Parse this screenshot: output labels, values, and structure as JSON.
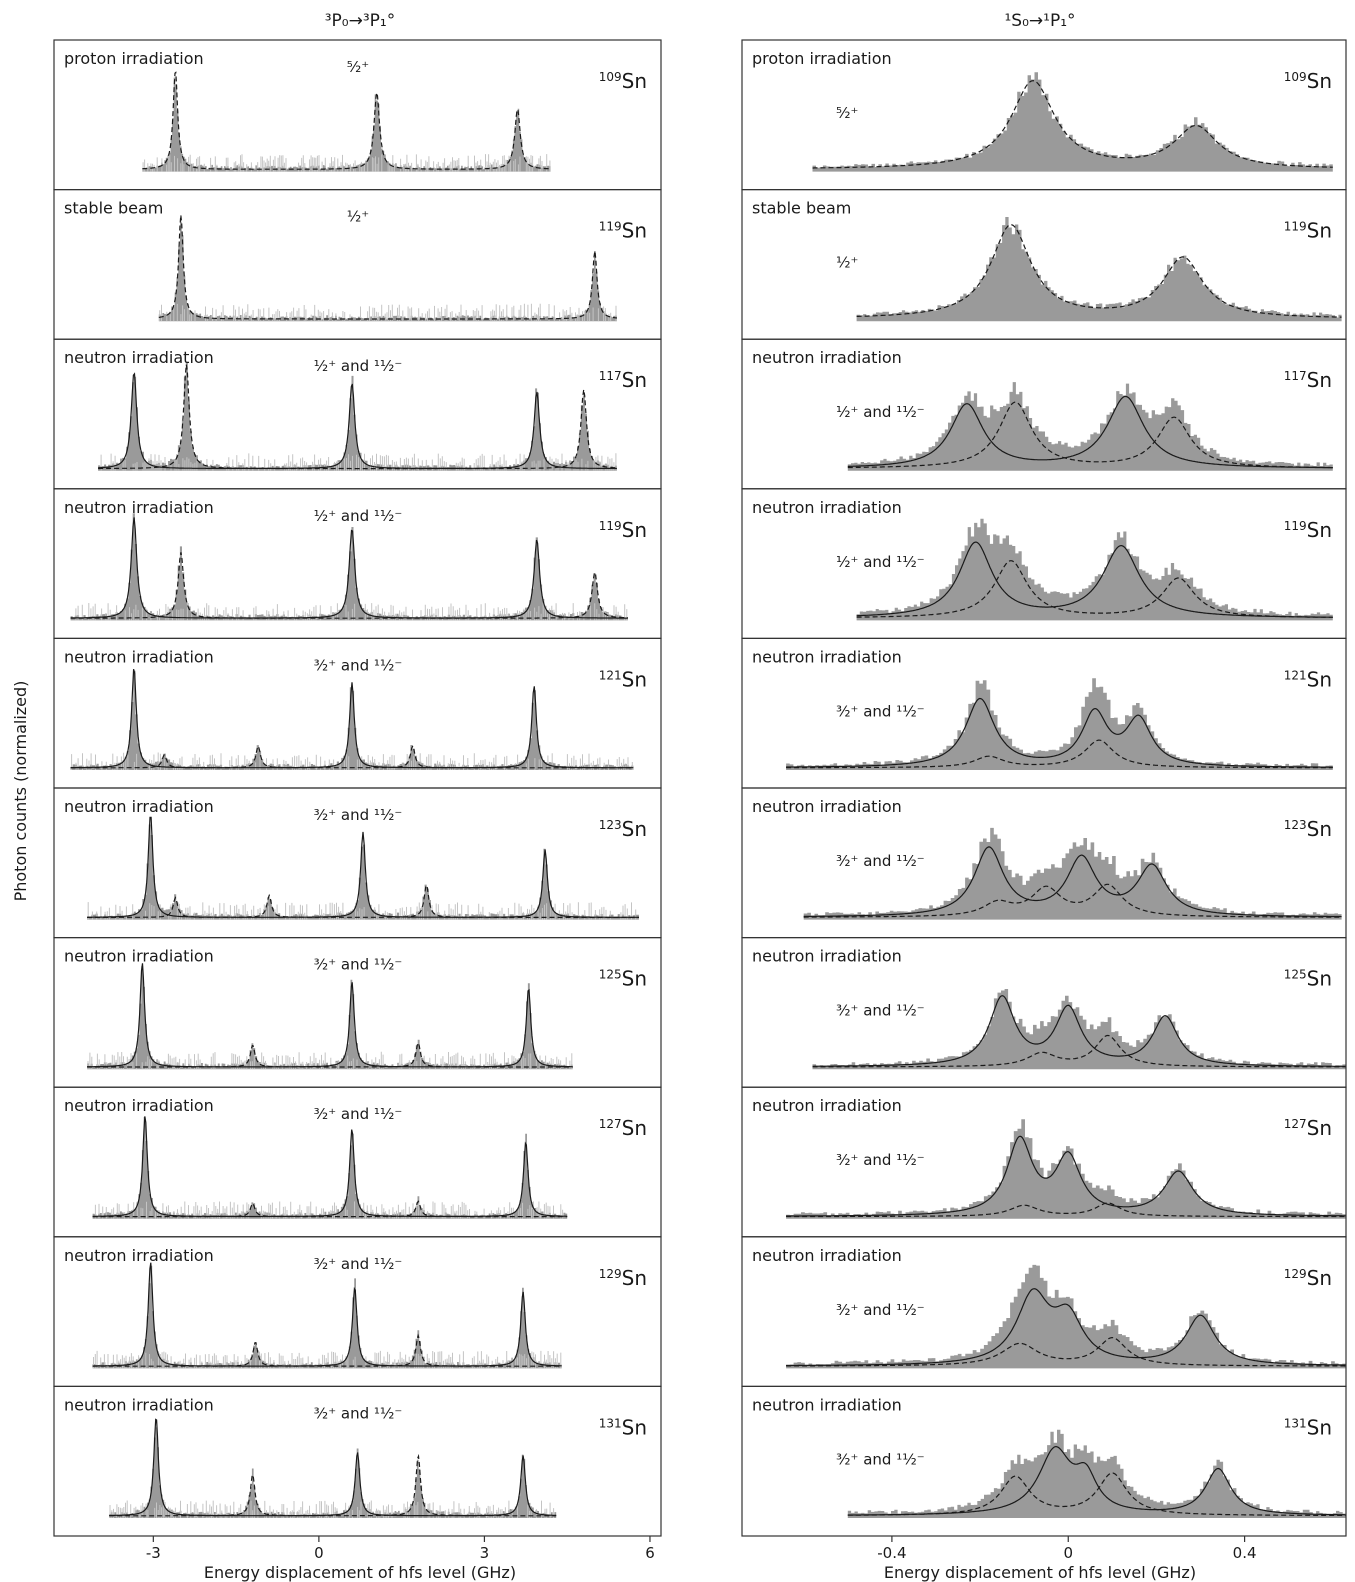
{
  "chart_data": [
    {
      "type": "area",
      "title": "³P₀→³P₁°",
      "xlabel": "Energy displacement of hfs level (GHz)",
      "ylabel": "Photon counts (normalized)",
      "xlim": [
        -4.8,
        6.2
      ],
      "x_ticks": [
        -3,
        0,
        3,
        6
      ],
      "x_tick_labels": [
        "-3",
        "0",
        "3",
        "6"
      ],
      "panels": [
        {
          "condition": "proton irradiation",
          "spin": "⁵⁄₂⁺",
          "isotope_mass": "109",
          "element": "Sn",
          "x_range": [
            -3.2,
            4.2
          ],
          "peaks_fit": [
            {
              "x": -2.6,
              "h": 0.9,
              "w": 0.05
            },
            {
              "x": 1.05,
              "h": 0.7,
              "w": 0.06
            },
            {
              "x": 3.6,
              "h": 0.55,
              "w": 0.06
            }
          ],
          "peaks_dashed": []
        },
        {
          "condition": "stable beam",
          "spin": "¹⁄₂⁺",
          "isotope_mass": "119",
          "element": "Sn",
          "x_range": [
            -2.9,
            5.4
          ],
          "peaks_fit": [
            {
              "x": -2.5,
              "h": 0.95,
              "w": 0.05
            },
            {
              "x": 5.0,
              "h": 0.62,
              "w": 0.05
            }
          ],
          "peaks_dashed": []
        },
        {
          "condition": "neutron irradiation",
          "spin": "¹⁄₂⁺ and ¹¹⁄₂⁻",
          "isotope_mass": "117",
          "element": "Sn",
          "x_range": [
            -4.0,
            5.4
          ],
          "peaks_fit": [
            {
              "x": -3.35,
              "h": 0.88,
              "w": 0.06
            },
            {
              "x": 0.6,
              "h": 0.78,
              "w": 0.06
            },
            {
              "x": 3.95,
              "h": 0.7,
              "w": 0.06
            }
          ],
          "peaks_dashed": [
            {
              "x": -2.4,
              "h": 0.95,
              "w": 0.06
            },
            {
              "x": 4.8,
              "h": 0.72,
              "w": 0.06
            }
          ]
        },
        {
          "condition": "neutron irradiation",
          "spin": "¹⁄₂⁺ and ¹¹⁄₂⁻",
          "isotope_mass": "119",
          "element": "Sn",
          "x_range": [
            -4.5,
            5.6
          ],
          "peaks_fit": [
            {
              "x": -3.35,
              "h": 0.92,
              "w": 0.06
            },
            {
              "x": 0.6,
              "h": 0.82,
              "w": 0.06
            },
            {
              "x": 3.95,
              "h": 0.72,
              "w": 0.06
            }
          ],
          "peaks_dashed": [
            {
              "x": -2.5,
              "h": 0.6,
              "w": 0.06
            },
            {
              "x": 5.0,
              "h": 0.42,
              "w": 0.06
            }
          ]
        },
        {
          "condition": "neutron irradiation",
          "spin": "³⁄₂⁺ and ¹¹⁄₂⁻",
          "isotope_mass": "121",
          "element": "Sn",
          "x_range": [
            -4.5,
            5.7
          ],
          "peaks_fit": [
            {
              "x": -3.35,
              "h": 0.92,
              "w": 0.05
            },
            {
              "x": 0.6,
              "h": 0.78,
              "w": 0.05
            },
            {
              "x": 3.9,
              "h": 0.75,
              "w": 0.05
            }
          ],
          "peaks_dashed": [
            {
              "x": -2.8,
              "h": 0.12,
              "w": 0.05
            },
            {
              "x": -1.1,
              "h": 0.2,
              "w": 0.05
            },
            {
              "x": 1.7,
              "h": 0.2,
              "w": 0.05
            }
          ]
        },
        {
          "condition": "neutron irradiation",
          "spin": "³⁄₂⁺ and ¹¹⁄₂⁻",
          "isotope_mass": "123",
          "element": "Sn",
          "x_range": [
            -4.2,
            5.8
          ],
          "peaks_fit": [
            {
              "x": -3.05,
              "h": 0.95,
              "w": 0.05
            },
            {
              "x": 0.8,
              "h": 0.78,
              "w": 0.05
            },
            {
              "x": 4.1,
              "h": 0.62,
              "w": 0.05
            }
          ],
          "peaks_dashed": [
            {
              "x": -2.6,
              "h": 0.18,
              "w": 0.05
            },
            {
              "x": -0.9,
              "h": 0.2,
              "w": 0.05
            },
            {
              "x": 1.95,
              "h": 0.3,
              "w": 0.05
            }
          ]
        },
        {
          "condition": "neutron irradiation",
          "spin": "³⁄₂⁺ and ¹¹⁄₂⁻",
          "isotope_mass": "125",
          "element": "Sn",
          "x_range": [
            -4.2,
            4.6
          ],
          "peaks_fit": [
            {
              "x": -3.2,
              "h": 0.95,
              "w": 0.05
            },
            {
              "x": 0.6,
              "h": 0.78,
              "w": 0.05
            },
            {
              "x": 3.8,
              "h": 0.72,
              "w": 0.05
            }
          ],
          "peaks_dashed": [
            {
              "x": -1.2,
              "h": 0.2,
              "w": 0.05
            },
            {
              "x": 1.8,
              "h": 0.22,
              "w": 0.05
            }
          ]
        },
        {
          "condition": "neutron irradiation",
          "spin": "³⁄₂⁺ and ¹¹⁄₂⁻",
          "isotope_mass": "127",
          "element": "Sn",
          "x_range": [
            -4.1,
            4.5
          ],
          "peaks_fit": [
            {
              "x": -3.15,
              "h": 0.92,
              "w": 0.05
            },
            {
              "x": 0.6,
              "h": 0.8,
              "w": 0.05
            },
            {
              "x": 3.75,
              "h": 0.68,
              "w": 0.05
            }
          ],
          "peaks_dashed": [
            {
              "x": -1.2,
              "h": 0.12,
              "w": 0.05
            },
            {
              "x": 1.8,
              "h": 0.14,
              "w": 0.05
            }
          ]
        },
        {
          "condition": "neutron irradiation",
          "spin": "³⁄₂⁺ and ¹¹⁄₂⁻",
          "isotope_mass": "129",
          "element": "Sn",
          "x_range": [
            -4.1,
            4.4
          ],
          "peaks_fit": [
            {
              "x": -3.05,
              "h": 0.95,
              "w": 0.05
            },
            {
              "x": 0.65,
              "h": 0.72,
              "w": 0.05
            },
            {
              "x": 3.7,
              "h": 0.68,
              "w": 0.05
            }
          ],
          "peaks_dashed": [
            {
              "x": -1.15,
              "h": 0.22,
              "w": 0.05
            },
            {
              "x": 1.8,
              "h": 0.28,
              "w": 0.05
            }
          ]
        },
        {
          "condition": "neutron irradiation",
          "spin": "³⁄₂⁺ and ¹¹⁄₂⁻",
          "isotope_mass": "131",
          "element": "Sn",
          "x_range": [
            -3.8,
            4.3
          ],
          "peaks_fit": [
            {
              "x": -2.95,
              "h": 0.9,
              "w": 0.05
            },
            {
              "x": 0.7,
              "h": 0.58,
              "w": 0.05
            },
            {
              "x": 3.7,
              "h": 0.55,
              "w": 0.05
            }
          ],
          "peaks_dashed": [
            {
              "x": -1.2,
              "h": 0.38,
              "w": 0.05
            },
            {
              "x": 1.8,
              "h": 0.55,
              "w": 0.05
            }
          ]
        }
      ]
    },
    {
      "type": "area",
      "title": "¹S₀→¹P₁°",
      "xlabel": "Energy displacement of hfs level (GHz)",
      "ylabel": "",
      "xlim": [
        -0.74,
        0.63
      ],
      "x_ticks": [
        -0.4,
        0,
        0.4
      ],
      "x_tick_labels": [
        "-0.4",
        "0",
        "0.4"
      ],
      "panels": [
        {
          "condition": "proton irradiation",
          "spin": "⁵⁄₂⁺",
          "isotope_mass": "109",
          "element": "Sn",
          "x_range": [
            -0.58,
            0.6
          ],
          "peaks_fit": [
            {
              "x": -0.08,
              "h": 0.8,
              "w": 0.06
            },
            {
              "x": 0.29,
              "h": 0.38,
              "w": 0.06
            }
          ],
          "peaks_dashed": []
        },
        {
          "condition": "stable beam",
          "spin": "¹⁄₂⁺",
          "isotope_mass": "119",
          "element": "Sn",
          "x_range": [
            -0.48,
            0.62
          ],
          "peaks_fit": [
            {
              "x": -0.13,
              "h": 0.85,
              "w": 0.055
            },
            {
              "x": 0.26,
              "h": 0.55,
              "w": 0.055
            }
          ],
          "peaks_dashed": []
        },
        {
          "condition": "neutron irradiation",
          "spin": "¹⁄₂⁺ and ¹¹⁄₂⁻",
          "isotope_mass": "117",
          "element": "Sn",
          "x_range": [
            -0.5,
            0.6
          ],
          "peaks_fit": [
            {
              "x": -0.23,
              "h": 0.58,
              "w": 0.045
            },
            {
              "x": 0.13,
              "h": 0.65,
              "w": 0.05
            }
          ],
          "peaks_dashed": [
            {
              "x": -0.12,
              "h": 0.6,
              "w": 0.045
            },
            {
              "x": 0.24,
              "h": 0.46,
              "w": 0.045
            }
          ]
        },
        {
          "condition": "neutron irradiation",
          "spin": "¹⁄₂⁺ and ¹¹⁄₂⁻",
          "isotope_mass": "119",
          "element": "Sn",
          "x_range": [
            -0.48,
            0.6
          ],
          "peaks_fit": [
            {
              "x": -0.21,
              "h": 0.68,
              "w": 0.045
            },
            {
              "x": 0.12,
              "h": 0.65,
              "w": 0.05
            }
          ],
          "peaks_dashed": [
            {
              "x": -0.13,
              "h": 0.52,
              "w": 0.045
            },
            {
              "x": 0.25,
              "h": 0.36,
              "w": 0.045
            }
          ]
        },
        {
          "condition": "neutron irradiation",
          "spin": "³⁄₂⁺ and ¹¹⁄₂⁻",
          "isotope_mass": "121",
          "element": "Sn",
          "x_range": [
            -0.64,
            0.6
          ],
          "peaks_fit": [
            {
              "x": -0.2,
              "h": 0.62,
              "w": 0.04
            },
            {
              "x": 0.06,
              "h": 0.48,
              "w": 0.035
            },
            {
              "x": 0.16,
              "h": 0.42,
              "w": 0.035
            }
          ],
          "peaks_dashed": [
            {
              "x": -0.18,
              "h": 0.1,
              "w": 0.04
            },
            {
              "x": 0.07,
              "h": 0.25,
              "w": 0.04
            }
          ]
        },
        {
          "condition": "neutron irradiation",
          "spin": "³⁄₂⁺ and ¹¹⁄₂⁻",
          "isotope_mass": "123",
          "element": "Sn",
          "x_range": [
            -0.6,
            0.62
          ],
          "peaks_fit": [
            {
              "x": -0.18,
              "h": 0.62,
              "w": 0.04
            },
            {
              "x": 0.03,
              "h": 0.52,
              "w": 0.04
            },
            {
              "x": 0.19,
              "h": 0.45,
              "w": 0.04
            }
          ],
          "peaks_dashed": [
            {
              "x": -0.16,
              "h": 0.12,
              "w": 0.04
            },
            {
              "x": -0.05,
              "h": 0.25,
              "w": 0.04
            },
            {
              "x": 0.09,
              "h": 0.28,
              "w": 0.04
            }
          ]
        },
        {
          "condition": "neutron irradiation",
          "spin": "³⁄₂⁺ and ¹¹⁄₂⁻",
          "isotope_mass": "125",
          "element": "Sn",
          "x_range": [
            -0.58,
            0.63
          ],
          "peaks_fit": [
            {
              "x": -0.15,
              "h": 0.62,
              "w": 0.035
            },
            {
              "x": 0.0,
              "h": 0.52,
              "w": 0.035
            },
            {
              "x": 0.22,
              "h": 0.45,
              "w": 0.035
            }
          ],
          "peaks_dashed": [
            {
              "x": -0.06,
              "h": 0.12,
              "w": 0.04
            },
            {
              "x": 0.09,
              "h": 0.28,
              "w": 0.035
            }
          ]
        },
        {
          "condition": "neutron irradiation",
          "spin": "³⁄₂⁺ and ¹¹⁄₂⁻",
          "isotope_mass": "127",
          "element": "Sn",
          "x_range": [
            -0.64,
            0.63
          ],
          "peaks_fit": [
            {
              "x": -0.11,
              "h": 0.68,
              "w": 0.035
            },
            {
              "x": 0.0,
              "h": 0.52,
              "w": 0.035
            },
            {
              "x": 0.25,
              "h": 0.4,
              "w": 0.04
            }
          ],
          "peaks_dashed": [
            {
              "x": -0.1,
              "h": 0.1,
              "w": 0.04
            },
            {
              "x": 0.09,
              "h": 0.12,
              "w": 0.035
            }
          ]
        },
        {
          "condition": "neutron irradiation",
          "spin": "³⁄₂⁺ and ¹¹⁄₂⁻",
          "isotope_mass": "129",
          "element": "Sn",
          "x_range": [
            -0.64,
            0.63
          ],
          "peaks_fit": [
            {
              "x": -0.08,
              "h": 0.62,
              "w": 0.045
            },
            {
              "x": 0.0,
              "h": 0.4,
              "w": 0.04
            },
            {
              "x": 0.3,
              "h": 0.45,
              "w": 0.04
            }
          ],
          "peaks_dashed": [
            {
              "x": -0.11,
              "h": 0.2,
              "w": 0.05
            },
            {
              "x": 0.1,
              "h": 0.25,
              "w": 0.04
            }
          ]
        },
        {
          "condition": "neutron irradiation",
          "spin": "³⁄₂⁺ and ¹¹⁄₂⁻",
          "isotope_mass": "131",
          "element": "Sn",
          "x_range": [
            -0.5,
            0.63
          ],
          "peaks_fit": [
            {
              "x": -0.03,
              "h": 0.58,
              "w": 0.045
            },
            {
              "x": 0.04,
              "h": 0.3,
              "w": 0.03
            },
            {
              "x": 0.34,
              "h": 0.42,
              "w": 0.035
            }
          ],
          "peaks_dashed": [
            {
              "x": -0.12,
              "h": 0.35,
              "w": 0.04
            },
            {
              "x": 0.1,
              "h": 0.38,
              "w": 0.04
            }
          ]
        }
      ]
    }
  ],
  "colors": {
    "histogram": "#9a9a9a",
    "noise": "#c4c4c4",
    "fit": "#1a1a1a",
    "frame": "#333333"
  }
}
